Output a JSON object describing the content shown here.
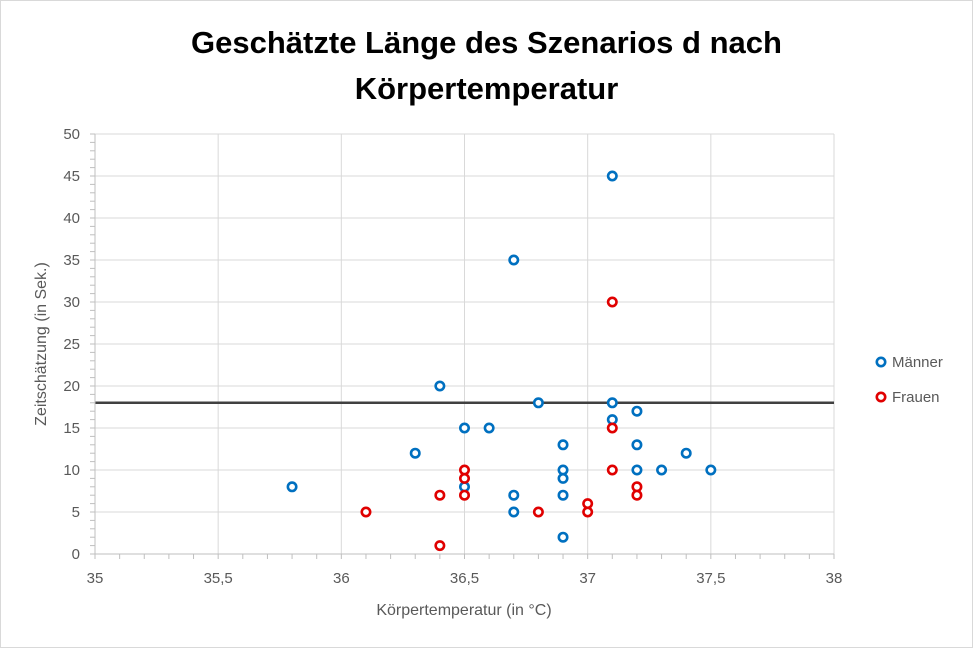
{
  "chart_data": {
    "type": "scatter",
    "title_lines": [
      "Geschätzte Länge des Szenarios d nach",
      "Körpertemperatur"
    ],
    "xlabel": "Körpertemperatur (in °C)",
    "ylabel": "Zeitschätzung (in Sek.)",
    "xlim": [
      35,
      38
    ],
    "ylim": [
      0,
      50
    ],
    "x_ticks": [
      35,
      35.5,
      36,
      36.5,
      37,
      37.5,
      38
    ],
    "x_tick_labels": [
      "35",
      "35,5",
      "36",
      "36,5",
      "37",
      "37,5",
      "38"
    ],
    "y_ticks": [
      0,
      5,
      10,
      15,
      20,
      25,
      30,
      35,
      40,
      45,
      50
    ],
    "y_tick_labels": [
      "0",
      "5",
      "10",
      "15",
      "20",
      "25",
      "30",
      "35",
      "40",
      "45",
      "50"
    ],
    "grid": true,
    "legend_position": "right",
    "reference_line": {
      "y": 18,
      "color": "#404040"
    },
    "series": [
      {
        "name": "Männer",
        "color": "#0070c0",
        "points": [
          [
            35.8,
            8
          ],
          [
            36.3,
            12
          ],
          [
            36.4,
            20
          ],
          [
            36.5,
            15
          ],
          [
            36.5,
            8
          ],
          [
            36.6,
            15
          ],
          [
            36.7,
            35
          ],
          [
            36.7,
            7
          ],
          [
            36.7,
            5
          ],
          [
            36.8,
            18
          ],
          [
            36.9,
            13
          ],
          [
            36.9,
            10
          ],
          [
            36.9,
            9
          ],
          [
            36.9,
            7
          ],
          [
            36.9,
            2
          ],
          [
            37.1,
            45
          ],
          [
            37.1,
            18
          ],
          [
            37.1,
            16
          ],
          [
            37.2,
            17
          ],
          [
            37.2,
            13
          ],
          [
            37.2,
            10
          ],
          [
            37.3,
            10
          ],
          [
            37.4,
            12
          ],
          [
            37.5,
            10
          ]
        ]
      },
      {
        "name": "Frauen",
        "color": "#e00000",
        "points": [
          [
            36.1,
            5
          ],
          [
            36.4,
            7
          ],
          [
            36.4,
            1
          ],
          [
            36.5,
            10
          ],
          [
            36.5,
            9
          ],
          [
            36.5,
            7
          ],
          [
            36.8,
            5
          ],
          [
            37.0,
            6
          ],
          [
            37.0,
            5
          ],
          [
            37.1,
            30
          ],
          [
            37.1,
            15
          ],
          [
            37.1,
            10
          ],
          [
            37.2,
            8
          ],
          [
            37.2,
            7
          ]
        ]
      }
    ]
  }
}
